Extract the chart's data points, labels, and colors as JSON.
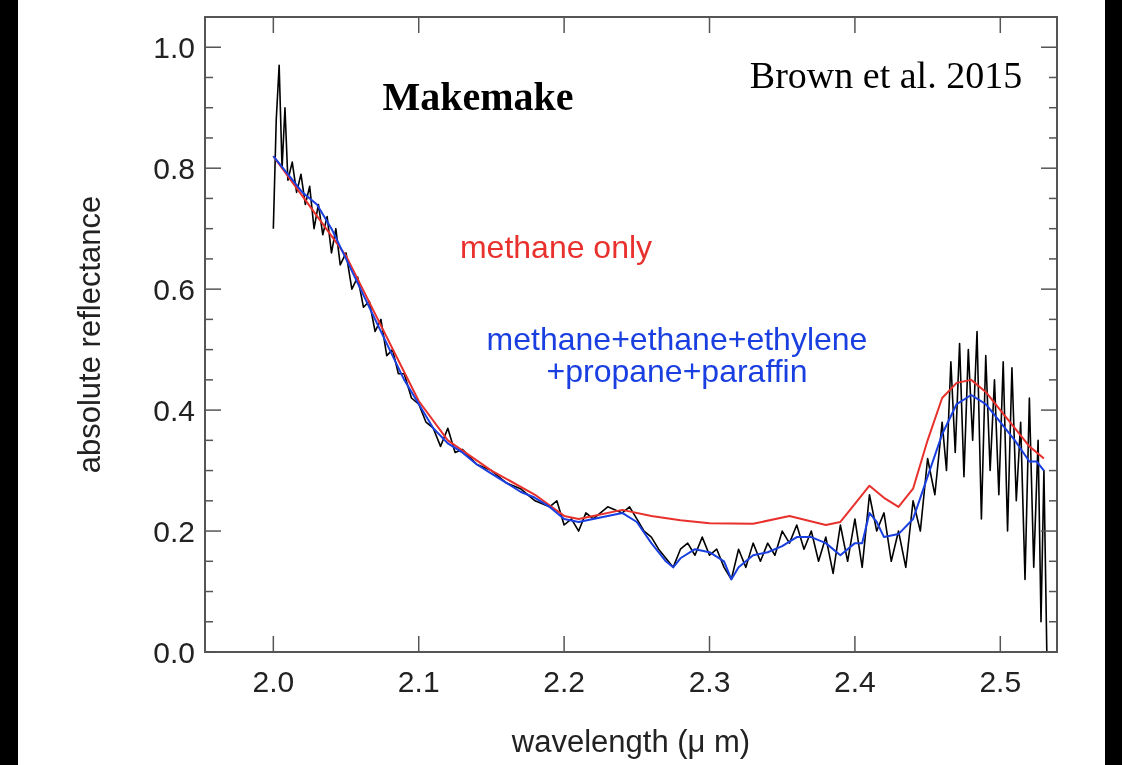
{
  "chart_data": {
    "type": "line",
    "xlabel": "wavelength (μ m)",
    "ylabel": "absolute reflectance",
    "annotations": [
      "Makemake",
      "Brown et al. 2015"
    ],
    "xlim": [
      1.953,
      2.539
    ],
    "ylim": [
      0,
      1.05
    ],
    "xticks": [
      {
        "value": 2.0,
        "label": "2.0"
      },
      {
        "value": 2.1,
        "label": "2.1"
      },
      {
        "value": 2.2,
        "label": "2.2"
      },
      {
        "value": 2.3,
        "label": "2.3"
      },
      {
        "value": 2.4,
        "label": "2.4"
      },
      {
        "value": 2.5,
        "label": "2.5"
      }
    ],
    "yticks": [
      {
        "value": 0,
        "label": "0.0"
      },
      {
        "value": 0.05,
        "label": null
      },
      {
        "value": 0.1,
        "label": null
      },
      {
        "value": 0.15,
        "label": null
      },
      {
        "value": 0.2,
        "label": "0.2"
      },
      {
        "value": 0.25,
        "label": null
      },
      {
        "value": 0.3,
        "label": null
      },
      {
        "value": 0.35,
        "label": null
      },
      {
        "value": 0.4,
        "label": "0.4"
      },
      {
        "value": 0.45,
        "label": null
      },
      {
        "value": 0.5,
        "label": null
      },
      {
        "value": 0.55,
        "label": null
      },
      {
        "value": 0.6,
        "label": "0.6"
      },
      {
        "value": 0.65,
        "label": null
      },
      {
        "value": 0.7,
        "label": null
      },
      {
        "value": 0.75,
        "label": null
      },
      {
        "value": 0.8,
        "label": "0.8"
      },
      {
        "value": 0.85,
        "label": null
      },
      {
        "value": 0.9,
        "label": null
      },
      {
        "value": 0.95,
        "label": null
      },
      {
        "value": 1.0,
        "label": "1.0"
      }
    ],
    "grid": false,
    "series": [
      {
        "color": "#000000",
        "x": [
          2.0,
          2.002,
          2.004,
          2.006,
          2.008,
          2.01,
          2.013,
          2.016,
          2.019,
          2.022,
          2.025,
          2.028,
          2.031,
          2.034,
          2.037,
          2.04,
          2.043,
          2.046,
          2.05,
          2.054,
          2.058,
          2.062,
          2.066,
          2.07,
          2.074,
          2.078,
          2.082,
          2.086,
          2.09,
          2.095,
          2.1,
          2.105,
          2.11,
          2.115,
          2.12,
          2.125,
          2.13,
          2.14,
          2.15,
          2.16,
          2.17,
          2.18,
          2.19,
          2.195,
          2.2,
          2.205,
          2.21,
          2.215,
          2.22,
          2.23,
          2.24,
          2.245,
          2.25,
          2.255,
          2.26,
          2.265,
          2.27,
          2.275,
          2.28,
          2.285,
          2.29,
          2.295,
          2.3,
          2.305,
          2.31,
          2.315,
          2.32,
          2.325,
          2.33,
          2.335,
          2.34,
          2.345,
          2.35,
          2.355,
          2.36,
          2.365,
          2.37,
          2.375,
          2.38,
          2.385,
          2.39,
          2.395,
          2.4,
          2.405,
          2.41,
          2.415,
          2.42,
          2.425,
          2.43,
          2.435,
          2.44,
          2.445,
          2.45,
          2.455,
          2.46,
          2.463,
          2.466,
          2.469,
          2.472,
          2.475,
          2.478,
          2.481,
          2.484,
          2.487,
          2.49,
          2.493,
          2.496,
          2.499,
          2.502,
          2.505,
          2.508,
          2.511,
          2.514,
          2.517,
          2.52,
          2.523,
          2.526,
          2.528,
          2.53,
          2.532
        ],
        "values": [
          0.7,
          0.88,
          0.97,
          0.8,
          0.9,
          0.78,
          0.81,
          0.76,
          0.79,
          0.74,
          0.77,
          0.7,
          0.74,
          0.69,
          0.72,
          0.66,
          0.7,
          0.64,
          0.66,
          0.6,
          0.62,
          0.57,
          0.58,
          0.53,
          0.55,
          0.49,
          0.5,
          0.46,
          0.46,
          0.42,
          0.41,
          0.38,
          0.37,
          0.34,
          0.37,
          0.33,
          0.335,
          0.31,
          0.3,
          0.28,
          0.27,
          0.25,
          0.24,
          0.25,
          0.21,
          0.22,
          0.2,
          0.23,
          0.22,
          0.24,
          0.23,
          0.24,
          0.22,
          0.2,
          0.19,
          0.17,
          0.155,
          0.14,
          0.17,
          0.18,
          0.16,
          0.19,
          0.16,
          0.17,
          0.14,
          0.12,
          0.17,
          0.14,
          0.18,
          0.15,
          0.18,
          0.16,
          0.2,
          0.18,
          0.21,
          0.17,
          0.2,
          0.15,
          0.19,
          0.13,
          0.21,
          0.15,
          0.22,
          0.14,
          0.26,
          0.2,
          0.23,
          0.15,
          0.2,
          0.14,
          0.25,
          0.2,
          0.32,
          0.26,
          0.38,
          0.3,
          0.48,
          0.33,
          0.51,
          0.29,
          0.5,
          0.35,
          0.53,
          0.22,
          0.49,
          0.3,
          0.45,
          0.26,
          0.48,
          0.2,
          0.47,
          0.25,
          0.38,
          0.12,
          0.42,
          0.14,
          0.35,
          0.05,
          0.3,
          0.0
        ]
      },
      {
        "name": "methane only",
        "color": "#e8302c",
        "x": [
          2.0,
          2.05,
          2.1,
          2.12,
          2.15,
          2.18,
          2.2,
          2.21,
          2.22,
          2.24,
          2.26,
          2.28,
          2.3,
          2.33,
          2.355,
          2.38,
          2.39,
          2.4,
          2.41,
          2.42,
          2.43,
          2.44,
          2.45,
          2.46,
          2.47,
          2.48,
          2.49,
          2.5,
          2.51,
          2.52,
          2.53
        ],
        "values": [
          0.82,
          0.655,
          0.415,
          0.35,
          0.3,
          0.26,
          0.225,
          0.22,
          0.225,
          0.235,
          0.225,
          0.218,
          0.213,
          0.212,
          0.225,
          0.21,
          0.215,
          0.245,
          0.275,
          0.255,
          0.24,
          0.27,
          0.35,
          0.42,
          0.445,
          0.45,
          0.43,
          0.4,
          0.37,
          0.34,
          0.32
        ]
      },
      {
        "name": "methane+ethane+ethylene\n+propane+paraffin",
        "color": "#1a3fe0",
        "x": [
          2.0,
          2.01,
          2.02,
          2.03,
          2.04,
          2.05,
          2.06,
          2.07,
          2.08,
          2.09,
          2.1,
          2.11,
          2.12,
          2.13,
          2.14,
          2.15,
          2.16,
          2.17,
          2.18,
          2.19,
          2.2,
          2.21,
          2.22,
          2.23,
          2.24,
          2.25,
          2.26,
          2.27,
          2.275,
          2.28,
          2.29,
          2.3,
          2.31,
          2.315,
          2.32,
          2.33,
          2.34,
          2.35,
          2.36,
          2.37,
          2.38,
          2.39,
          2.4,
          2.405,
          2.41,
          2.415,
          2.42,
          2.43,
          2.44,
          2.45,
          2.46,
          2.47,
          2.48,
          2.49,
          2.5,
          2.51,
          2.52,
          2.525,
          2.53
        ],
        "values": [
          0.82,
          0.79,
          0.76,
          0.74,
          0.7,
          0.65,
          0.6,
          0.55,
          0.5,
          0.45,
          0.41,
          0.37,
          0.345,
          0.33,
          0.31,
          0.295,
          0.28,
          0.265,
          0.255,
          0.24,
          0.22,
          0.215,
          0.22,
          0.225,
          0.23,
          0.215,
          0.18,
          0.15,
          0.14,
          0.155,
          0.17,
          0.165,
          0.15,
          0.12,
          0.14,
          0.16,
          0.165,
          0.175,
          0.19,
          0.19,
          0.18,
          0.16,
          0.18,
          0.18,
          0.23,
          0.215,
          0.19,
          0.195,
          0.22,
          0.29,
          0.36,
          0.41,
          0.425,
          0.41,
          0.38,
          0.35,
          0.315,
          0.315,
          0.3
        ]
      }
    ]
  }
}
